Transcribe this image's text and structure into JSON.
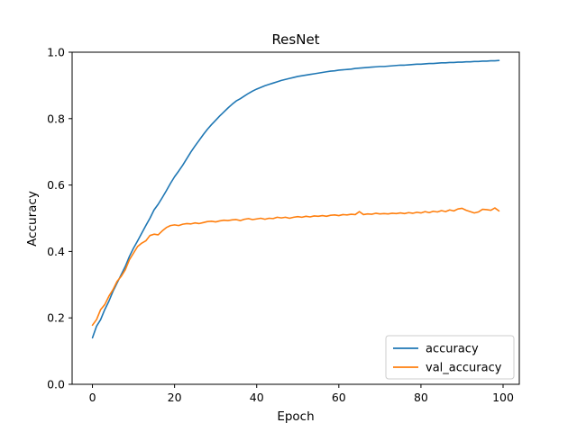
{
  "chart_data": {
    "type": "line",
    "title": "ResNet",
    "xlabel": "Epoch",
    "ylabel": "Accuracy",
    "xlim": [
      -4.95,
      103.95
    ],
    "ylim": [
      0.0,
      1.0
    ],
    "xticks": [
      "0",
      "20",
      "40",
      "60",
      "80",
      "100"
    ],
    "yticks": [
      "0.0",
      "0.2",
      "0.4",
      "0.6",
      "0.8",
      "1.0"
    ],
    "xtick_values": [
      0,
      20,
      40,
      60,
      80,
      100
    ],
    "ytick_values": [
      0.0,
      0.2,
      0.4,
      0.6,
      0.8,
      1.0
    ],
    "grid": false,
    "legend_position": "lower-right",
    "series": [
      {
        "name": "accuracy",
        "color": "#1f77b4",
        "x": [
          0,
          1,
          2,
          3,
          4,
          5,
          6,
          7,
          8,
          9,
          10,
          11,
          12,
          13,
          14,
          15,
          16,
          17,
          18,
          19,
          20,
          21,
          22,
          23,
          24,
          25,
          26,
          27,
          28,
          29,
          30,
          31,
          32,
          33,
          34,
          35,
          36,
          37,
          38,
          39,
          40,
          41,
          42,
          43,
          44,
          45,
          46,
          47,
          48,
          49,
          50,
          51,
          52,
          53,
          54,
          55,
          56,
          57,
          58,
          59,
          60,
          61,
          62,
          63,
          64,
          65,
          66,
          67,
          68,
          69,
          70,
          71,
          72,
          73,
          74,
          75,
          76,
          77,
          78,
          79,
          80,
          81,
          82,
          83,
          84,
          85,
          86,
          87,
          88,
          89,
          90,
          91,
          92,
          93,
          94,
          95,
          96,
          97,
          98,
          99
        ],
        "values": [
          0.14,
          0.175,
          0.195,
          0.225,
          0.25,
          0.28,
          0.305,
          0.33,
          0.355,
          0.385,
          0.41,
          0.432,
          0.455,
          0.478,
          0.5,
          0.525,
          0.542,
          0.562,
          0.583,
          0.605,
          0.625,
          0.642,
          0.66,
          0.68,
          0.7,
          0.718,
          0.735,
          0.752,
          0.768,
          0.782,
          0.795,
          0.808,
          0.82,
          0.832,
          0.843,
          0.853,
          0.86,
          0.868,
          0.876,
          0.883,
          0.889,
          0.894,
          0.899,
          0.903,
          0.907,
          0.911,
          0.915,
          0.918,
          0.921,
          0.924,
          0.927,
          0.929,
          0.931,
          0.933,
          0.935,
          0.937,
          0.939,
          0.941,
          0.943,
          0.944,
          0.946,
          0.947,
          0.948,
          0.949,
          0.951,
          0.952,
          0.953,
          0.954,
          0.955,
          0.956,
          0.957,
          0.957,
          0.958,
          0.959,
          0.96,
          0.961,
          0.961,
          0.962,
          0.963,
          0.964,
          0.964,
          0.965,
          0.966,
          0.966,
          0.967,
          0.968,
          0.968,
          0.969,
          0.969,
          0.97,
          0.97,
          0.971,
          0.971,
          0.972,
          0.972,
          0.973,
          0.973,
          0.974,
          0.974,
          0.975
        ]
      },
      {
        "name": "val_accuracy",
        "color": "#ff7f0e",
        "x": [
          0,
          1,
          2,
          3,
          4,
          5,
          6,
          7,
          8,
          9,
          10,
          11,
          12,
          13,
          14,
          15,
          16,
          17,
          18,
          19,
          20,
          21,
          22,
          23,
          24,
          25,
          26,
          27,
          28,
          29,
          30,
          31,
          32,
          33,
          34,
          35,
          36,
          37,
          38,
          39,
          40,
          41,
          42,
          43,
          44,
          45,
          46,
          47,
          48,
          49,
          50,
          51,
          52,
          53,
          54,
          55,
          56,
          57,
          58,
          59,
          60,
          61,
          62,
          63,
          64,
          65,
          66,
          67,
          68,
          69,
          70,
          71,
          72,
          73,
          74,
          75,
          76,
          77,
          78,
          79,
          80,
          81,
          82,
          83,
          84,
          85,
          86,
          87,
          88,
          89,
          90,
          91,
          92,
          93,
          94,
          95,
          96,
          97,
          98,
          99
        ],
        "values": [
          0.178,
          0.195,
          0.225,
          0.24,
          0.265,
          0.285,
          0.31,
          0.325,
          0.345,
          0.375,
          0.395,
          0.415,
          0.425,
          0.432,
          0.448,
          0.452,
          0.45,
          0.462,
          0.472,
          0.478,
          0.48,
          0.478,
          0.482,
          0.484,
          0.483,
          0.486,
          0.484,
          0.487,
          0.49,
          0.491,
          0.489,
          0.492,
          0.494,
          0.493,
          0.495,
          0.496,
          0.493,
          0.497,
          0.499,
          0.496,
          0.498,
          0.5,
          0.497,
          0.5,
          0.499,
          0.503,
          0.501,
          0.503,
          0.5,
          0.503,
          0.505,
          0.503,
          0.506,
          0.504,
          0.507,
          0.506,
          0.508,
          0.506,
          0.509,
          0.51,
          0.508,
          0.511,
          0.51,
          0.512,
          0.511,
          0.52,
          0.511,
          0.513,
          0.512,
          0.515,
          0.513,
          0.514,
          0.513,
          0.515,
          0.514,
          0.516,
          0.514,
          0.517,
          0.515,
          0.518,
          0.516,
          0.52,
          0.517,
          0.521,
          0.519,
          0.523,
          0.52,
          0.525,
          0.522,
          0.528,
          0.53,
          0.524,
          0.52,
          0.516,
          0.519,
          0.527,
          0.526,
          0.524,
          0.531,
          0.522
        ]
      }
    ]
  }
}
